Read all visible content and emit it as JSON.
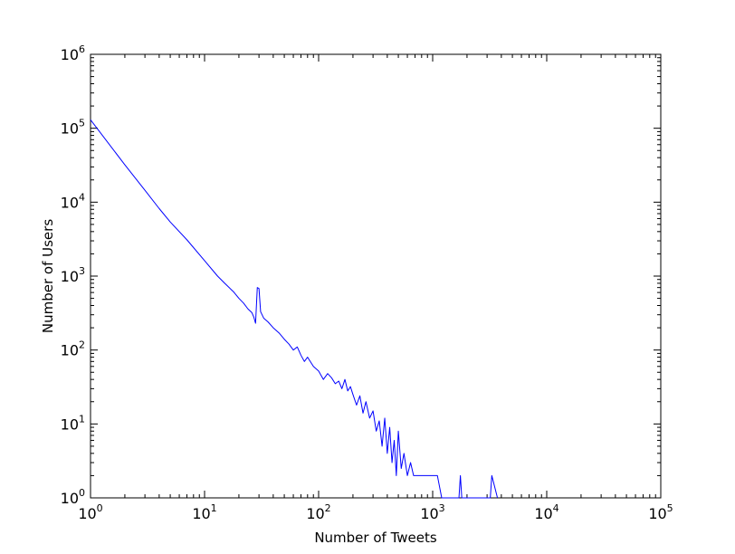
{
  "chart_data": {
    "type": "line",
    "title": "",
    "xlabel": "Number of Tweets",
    "ylabel": "Number of Users",
    "xscale": "log",
    "yscale": "log",
    "xlim": [
      1,
      100000
    ],
    "ylim": [
      1,
      1000000
    ],
    "x_ticks": [
      {
        "base": "10",
        "exp": "0",
        "value": 1
      },
      {
        "base": "10",
        "exp": "1",
        "value": 10
      },
      {
        "base": "10",
        "exp": "2",
        "value": 100
      },
      {
        "base": "10",
        "exp": "3",
        "value": 1000
      },
      {
        "base": "10",
        "exp": "4",
        "value": 10000
      },
      {
        "base": "10",
        "exp": "5",
        "value": 100000
      }
    ],
    "y_ticks": [
      {
        "base": "10",
        "exp": "0",
        "value": 1
      },
      {
        "base": "10",
        "exp": "1",
        "value": 10
      },
      {
        "base": "10",
        "exp": "2",
        "value": 100
      },
      {
        "base": "10",
        "exp": "3",
        "value": 1000
      },
      {
        "base": "10",
        "exp": "4",
        "value": 10000
      },
      {
        "base": "10",
        "exp": "5",
        "value": 100000
      },
      {
        "base": "10",
        "exp": "6",
        "value": 1000000
      }
    ],
    "grid": false,
    "line_color": "#0000ff",
    "series": [
      {
        "x": [
          1,
          2,
          3,
          4,
          5,
          7,
          10,
          13,
          15,
          18,
          20,
          22,
          24,
          26,
          27,
          28,
          29,
          30,
          31,
          33,
          36,
          40,
          45,
          50,
          55,
          60,
          65,
          70,
          75,
          80,
          90,
          100,
          110,
          120,
          130,
          140,
          150,
          160,
          170,
          180,
          190,
          200,
          215,
          230,
          245,
          260,
          280,
          300,
          320,
          340,
          360,
          380,
          400,
          420,
          440,
          460,
          480,
          500,
          530,
          560,
          600,
          640,
          680,
          720,
          780,
          840,
          900,
          960,
          1000,
          1050,
          1100,
          1200,
          1700,
          1750,
          1800,
          1850,
          3200,
          3300,
          3700
        ],
        "y": [
          130000,
          32000,
          14500,
          8200,
          5400,
          3100,
          1620,
          1000,
          800,
          610,
          500,
          430,
          360,
          320,
          280,
          230,
          700,
          680,
          330,
          270,
          240,
          200,
          170,
          140,
          120,
          100,
          110,
          85,
          70,
          80,
          60,
          52,
          40,
          48,
          42,
          35,
          38,
          30,
          40,
          28,
          32,
          25,
          18,
          24,
          14,
          20,
          12,
          15,
          8,
          11,
          5,
          12,
          4,
          9,
          3,
          6,
          2,
          8,
          2.5,
          4,
          2,
          3,
          2,
          2,
          2,
          2,
          2,
          2,
          2,
          2,
          2,
          1,
          1,
          2,
          1,
          1,
          1,
          2,
          1
        ]
      }
    ]
  }
}
